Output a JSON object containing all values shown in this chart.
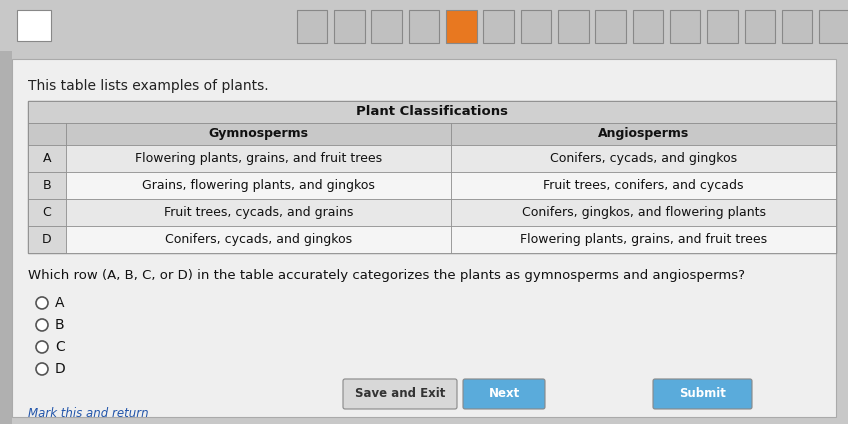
{
  "bg_top_color": "#c8c8c8",
  "bg_main_color": "#e8e8e8",
  "page_bg": "#d0d0d0",
  "title_text": "This table lists examples of plants.",
  "table_title": "Plant Classifications",
  "col_headers": [
    "",
    "Gymnosperms",
    "Angiosperms"
  ],
  "rows": [
    [
      "A",
      "Flowering plants, grains, and fruit trees",
      "Conifers, cycads, and gingkos"
    ],
    [
      "B",
      "Grains, flowering plants, and gingkos",
      "Fruit trees, conifers, and cycads"
    ],
    [
      "C",
      "Fruit trees, cycads, and grains",
      "Conifers, gingkos, and flowering plants"
    ],
    [
      "D",
      "Conifers, cycads, and gingkos",
      "Flowering plants, grains, and fruit trees"
    ]
  ],
  "question_text": "Which row (A, B, C, or D) in the table accurately categorizes the plants as gymnosperms and angiosperms?",
  "choices": [
    "A",
    "B",
    "C",
    "D"
  ],
  "button_labels": [
    "Save and Exit",
    "Next",
    "Submit"
  ],
  "button_colors": [
    "#d0d0d0",
    "#5aabdb",
    "#5aabdb"
  ],
  "mark_text": "Mark this and return",
  "header_row_bg": "#b8b8b8",
  "data_row_bg_odd": "#e8e8e8",
  "data_row_bg_even": "#f5f5f5",
  "table_header_bg": "#c0c0c0",
  "top_bar_color": "#e87820",
  "top_bar_bg": "#c8c8c8",
  "sq_colors": [
    "#c0c0c0",
    "#c0c0c0",
    "#c0c0c0",
    "#c0c0c0",
    "#e87820",
    "#c0c0c0",
    "#c0c0c0",
    "#c0c0c0",
    "#c0c0c0",
    "#c0c0c0",
    "#c0c0c0",
    "#c0c0c0",
    "#c0c0c0",
    "#c0c0c0",
    "#c0c0c0"
  ]
}
